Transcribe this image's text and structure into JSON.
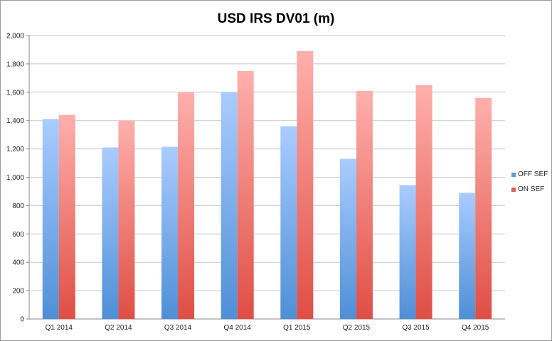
{
  "chart_data": {
    "type": "bar",
    "title": "USD IRS DV01 (m)",
    "categories": [
      "Q1 2014",
      "Q2 2014",
      "Q3 2014",
      "Q4 2014",
      "Q1 2015",
      "Q2 2015",
      "Q3 2015",
      "Q4 2015"
    ],
    "series": [
      {
        "name": "OFF SEF",
        "values": [
          1410,
          1210,
          1215,
          1600,
          1360,
          1130,
          945,
          890
        ],
        "color": "#5b9bd5"
      },
      {
        "name": "ON SEF",
        "values": [
          1440,
          1400,
          1600,
          1750,
          1890,
          1610,
          1650,
          1560
        ],
        "color": "#e06058"
      }
    ],
    "ylim": [
      0,
      2000
    ],
    "yticks": [
      "0",
      "200",
      "400",
      "600",
      "800",
      "1,000",
      "1,200",
      "1,400",
      "1,600",
      "1,800",
      "2,000"
    ],
    "xlabel": "",
    "ylabel": "",
    "grid": true,
    "legend_position": "right"
  }
}
